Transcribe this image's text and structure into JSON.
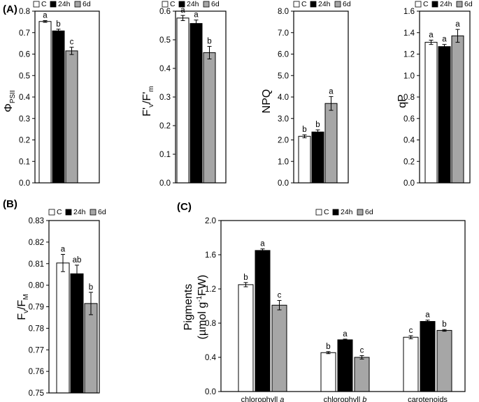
{
  "panel_labels": [
    "(A)",
    "(B)",
    "(C)"
  ],
  "legend": {
    "entries": [
      {
        "name": "C",
        "color": "#ffffff"
      },
      {
        "name": "24h",
        "color": "#000000"
      },
      {
        "name": "6d",
        "color": "#a6a6a6"
      }
    ]
  },
  "chart_data": [
    {
      "id": "phipsii",
      "panel": "A",
      "type": "bar",
      "ylabel": "ΦPSII",
      "ylabel_main": "Φ",
      "ylabel_sub": "PSII",
      "ylim": [
        0.0,
        0.8
      ],
      "yticks": [
        "0.0",
        "0.1",
        "0.2",
        "0.3",
        "0.4",
        "0.5",
        "0.6",
        "0.7",
        "0.8"
      ],
      "categories": [
        ""
      ],
      "series": [
        {
          "name": "C",
          "values": [
            0.752
          ],
          "errors": [
            0.004
          ],
          "letters": [
            "a"
          ]
        },
        {
          "name": "24h",
          "values": [
            0.708
          ],
          "errors": [
            0.008
          ],
          "letters": [
            "b"
          ]
        },
        {
          "name": "6d",
          "values": [
            0.615
          ],
          "errors": [
            0.017
          ],
          "letters": [
            "c"
          ]
        }
      ]
    },
    {
      "id": "fvfm-prime",
      "panel": "A",
      "type": "bar",
      "ylabel": "F'v/F'm",
      "ylim": [
        0.0,
        0.6
      ],
      "yticks": [
        "0.0",
        "0.1",
        "0.2",
        "0.3",
        "0.4",
        "0.5",
        "0.6"
      ],
      "categories": [
        ""
      ],
      "series": [
        {
          "name": "C",
          "values": [
            0.576
          ],
          "errors": [
            0.009
          ],
          "letters": [
            "a"
          ]
        },
        {
          "name": "24h",
          "values": [
            0.557
          ],
          "errors": [
            0.012
          ],
          "letters": [
            "a"
          ]
        },
        {
          "name": "6d",
          "values": [
            0.455
          ],
          "errors": [
            0.022
          ],
          "letters": [
            "b"
          ]
        }
      ]
    },
    {
      "id": "npq",
      "panel": "A",
      "type": "bar",
      "ylabel": "NPQ",
      "ylim": [
        0.0,
        8.0
      ],
      "yticks": [
        "0.0",
        "1.0",
        "2.0",
        "3.0",
        "4.0",
        "5.0",
        "6.0",
        "7.0",
        "8.0"
      ],
      "categories": [
        ""
      ],
      "series": [
        {
          "name": "C",
          "values": [
            2.17
          ],
          "errors": [
            0.07
          ],
          "letters": [
            "b"
          ]
        },
        {
          "name": "24h",
          "values": [
            2.37
          ],
          "errors": [
            0.1
          ],
          "letters": [
            "b"
          ]
        },
        {
          "name": "6d",
          "values": [
            3.7
          ],
          "errors": [
            0.32
          ],
          "letters": [
            "a"
          ]
        }
      ]
    },
    {
      "id": "qp",
      "panel": "A",
      "type": "bar",
      "ylabel": "qP",
      "ylim": [
        0.0,
        1.6
      ],
      "yticks": [
        "0.0",
        "0.2",
        "0.4",
        "0.6",
        "0.8",
        "1.0",
        "1.2",
        "1.4",
        "1.6"
      ],
      "categories": [
        ""
      ],
      "series": [
        {
          "name": "C",
          "values": [
            1.31
          ],
          "errors": [
            0.02
          ],
          "letters": [
            "a"
          ]
        },
        {
          "name": "24h",
          "values": [
            1.27
          ],
          "errors": [
            0.02
          ],
          "letters": [
            "a"
          ]
        },
        {
          "name": "6d",
          "values": [
            1.37
          ],
          "errors": [
            0.06
          ],
          "letters": [
            "a"
          ]
        }
      ]
    },
    {
      "id": "fvfm",
      "panel": "B",
      "type": "bar",
      "ylabel": "Fv/FM",
      "ylim": [
        0.75,
        0.83
      ],
      "yticks": [
        "0.75",
        "0.76",
        "0.77",
        "0.78",
        "0.79",
        "0.80",
        "0.81",
        "0.82",
        "0.83"
      ],
      "categories": [
        ""
      ],
      "series": [
        {
          "name": "C",
          "values": [
            0.8103
          ],
          "errors": [
            0.004
          ],
          "letters": [
            "a"
          ]
        },
        {
          "name": "24h",
          "values": [
            0.8053
          ],
          "errors": [
            0.004
          ],
          "letters": [
            "ab"
          ]
        },
        {
          "name": "6d",
          "values": [
            0.7915
          ],
          "errors": [
            0.0052
          ],
          "letters": [
            "b"
          ]
        }
      ]
    },
    {
      "id": "pigments",
      "panel": "C",
      "type": "bar",
      "ylabel": "Pigments (µmol g-1FW)",
      "ylabel_line1": "Pigments",
      "ylabel_line2": "(µmol g",
      "ylabel_sup": "-1",
      "ylabel_line2_end": "FW)",
      "ylim": [
        0.0,
        2.0
      ],
      "yticks": [
        "0.0",
        "0.4",
        "0.8",
        "1.2",
        "1.6",
        "2.0"
      ],
      "categories": [
        "chlorophyll a",
        "chlorophyll b",
        "carotenoids"
      ],
      "series": [
        {
          "name": "C",
          "values": [
            1.25,
            0.455,
            0.635
          ],
          "errors": [
            0.025,
            0.012,
            0.018
          ],
          "letters": [
            "b",
            "b",
            "c"
          ]
        },
        {
          "name": "24h",
          "values": [
            1.65,
            0.605,
            0.82
          ],
          "errors": [
            0.018,
            0.008,
            0.015
          ],
          "letters": [
            "a",
            "a",
            "a"
          ]
        },
        {
          "name": "6d",
          "values": [
            1.01,
            0.4,
            0.715
          ],
          "errors": [
            0.055,
            0.02,
            0.01
          ],
          "letters": [
            "c",
            "c",
            "b"
          ]
        }
      ]
    }
  ]
}
